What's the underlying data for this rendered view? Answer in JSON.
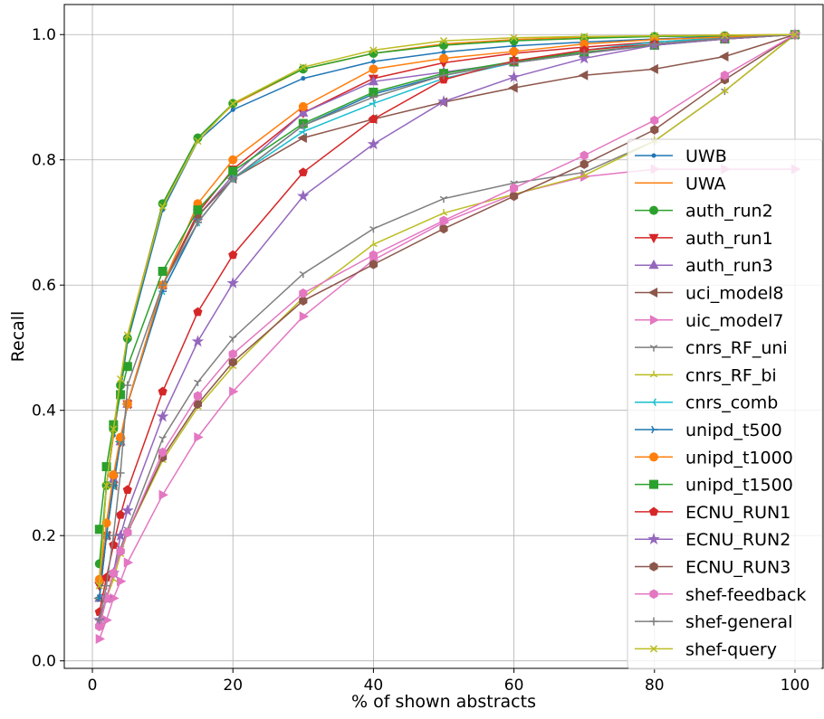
{
  "chart_data": {
    "type": "line",
    "title": "",
    "xlabel": "% of shown abstracts",
    "ylabel": "Recall",
    "xlim": [
      -4,
      104
    ],
    "ylim": [
      -0.012,
      1.048
    ],
    "xticks": [
      0,
      20,
      40,
      60,
      80,
      100
    ],
    "yticks": [
      0.0,
      0.2,
      0.4,
      0.6,
      0.8,
      1.0
    ],
    "xtick_labels": [
      "0",
      "20",
      "40",
      "60",
      "80",
      "100"
    ],
    "ytick_labels": [
      "0.0",
      "0.2",
      "0.4",
      "0.6",
      "0.8",
      "1.0"
    ],
    "grid": true,
    "legend_position": "right",
    "x": [
      1,
      2,
      3,
      4,
      5,
      10,
      15,
      20,
      30,
      40,
      50,
      60,
      70,
      80,
      90,
      100
    ],
    "series": [
      {
        "name": "UWB",
        "color": "#1f77b4",
        "marker": "point",
        "values": [
          0.13,
          0.28,
          0.36,
          0.43,
          0.51,
          0.72,
          0.83,
          0.88,
          0.93,
          0.957,
          0.972,
          0.982,
          0.988,
          0.993,
          0.997,
          1.0
        ]
      },
      {
        "name": "UWA",
        "color": "#ff7f0e",
        "marker": "none",
        "values": [
          0.13,
          0.28,
          0.36,
          0.44,
          0.52,
          0.73,
          0.835,
          0.888,
          0.945,
          0.97,
          0.985,
          0.992,
          0.996,
          0.998,
          0.999,
          1.0
        ]
      },
      {
        "name": "auth_run2",
        "color": "#2ca02c",
        "marker": "circle",
        "values": [
          0.155,
          0.28,
          0.37,
          0.44,
          0.515,
          0.73,
          0.835,
          0.89,
          0.945,
          0.97,
          0.983,
          0.99,
          0.994,
          0.997,
          0.998,
          1.0
        ]
      },
      {
        "name": "auth_run1",
        "color": "#d62728",
        "marker": "triangle-down",
        "values": [
          0.12,
          0.2,
          0.29,
          0.35,
          0.41,
          0.6,
          0.715,
          0.785,
          0.875,
          0.93,
          0.955,
          0.97,
          0.98,
          0.988,
          0.995,
          1.0
        ]
      },
      {
        "name": "auth_run3",
        "color": "#9467bd",
        "marker": "triangle-up",
        "values": [
          0.1,
          0.2,
          0.29,
          0.35,
          0.41,
          0.6,
          0.71,
          0.775,
          0.875,
          0.925,
          0.94,
          0.955,
          0.97,
          0.983,
          0.993,
          1.0
        ]
      },
      {
        "name": "uci_model8",
        "color": "#8c564b",
        "marker": "triangle-left",
        "values": [
          0.1,
          0.2,
          0.28,
          0.35,
          0.41,
          0.6,
          0.71,
          0.77,
          0.835,
          0.865,
          0.892,
          0.915,
          0.935,
          0.945,
          0.965,
          1.0
        ]
      },
      {
        "name": "uic_model7",
        "color": "#e377c2",
        "marker": "triangle-right",
        "values": [
          0.035,
          0.065,
          0.1,
          0.127,
          0.157,
          0.265,
          0.357,
          0.43,
          0.55,
          0.64,
          0.7,
          0.745,
          0.773,
          0.785,
          0.785,
          0.785
        ]
      },
      {
        "name": "cnrs_RF_uni",
        "color": "#7f7f7f",
        "marker": "tri-down",
        "values": [
          0.065,
          0.1,
          0.14,
          0.18,
          0.21,
          0.355,
          0.445,
          0.515,
          0.618,
          0.69,
          0.738,
          0.763,
          0.78,
          0.83,
          0.91,
          1.0
        ]
      },
      {
        "name": "cnrs_RF_bi",
        "color": "#bcbd22",
        "marker": "tri-up",
        "values": [
          0.055,
          0.1,
          0.13,
          0.17,
          0.205,
          0.32,
          0.405,
          0.47,
          0.58,
          0.665,
          0.715,
          0.745,
          0.775,
          0.83,
          0.91,
          1.0
        ]
      },
      {
        "name": "cnrs_comb",
        "color": "#17becf",
        "marker": "tri-left",
        "values": [
          0.1,
          0.2,
          0.28,
          0.35,
          0.41,
          0.59,
          0.7,
          0.77,
          0.845,
          0.89,
          0.93,
          0.955,
          0.975,
          0.988,
          0.995,
          1.0
        ]
      },
      {
        "name": "unipd_t500",
        "color": "#1f77b4",
        "marker": "tri-right",
        "values": [
          0.1,
          0.2,
          0.28,
          0.35,
          0.41,
          0.59,
          0.7,
          0.77,
          0.855,
          0.905,
          0.935,
          0.955,
          0.97,
          0.985,
          0.994,
          1.0
        ]
      },
      {
        "name": "unipd_t1000",
        "color": "#ff7f0e",
        "marker": "circle",
        "values": [
          0.13,
          0.22,
          0.297,
          0.357,
          0.41,
          0.6,
          0.73,
          0.8,
          0.885,
          0.945,
          0.962,
          0.973,
          0.985,
          0.992,
          0.996,
          1.0
        ]
      },
      {
        "name": "unipd_t1500",
        "color": "#2ca02c",
        "marker": "square",
        "values": [
          0.21,
          0.31,
          0.377,
          0.425,
          0.47,
          0.622,
          0.72,
          0.782,
          0.858,
          0.908,
          0.938,
          0.957,
          0.972,
          0.983,
          0.993,
          1.0
        ]
      },
      {
        "name": "ECNU_RUN1",
        "color": "#d62728",
        "marker": "pentagon",
        "values": [
          0.078,
          0.133,
          0.185,
          0.233,
          0.273,
          0.43,
          0.557,
          0.648,
          0.78,
          0.865,
          0.928,
          0.958,
          0.975,
          0.985,
          0.993,
          1.0
        ]
      },
      {
        "name": "ECNU_RUN2",
        "color": "#9467bd",
        "marker": "star",
        "values": [
          0.065,
          0.1,
          0.14,
          0.2,
          0.24,
          0.39,
          0.51,
          0.603,
          0.742,
          0.825,
          0.893,
          0.932,
          0.962,
          0.983,
          0.993,
          1.0
        ]
      },
      {
        "name": "ECNU_RUN3",
        "color": "#8c564b",
        "marker": "hexagon",
        "values": [
          0.055,
          0.1,
          0.14,
          0.175,
          0.205,
          0.325,
          0.41,
          0.477,
          0.575,
          0.633,
          0.69,
          0.742,
          0.793,
          0.848,
          0.928,
          1.0
        ]
      },
      {
        "name": "shef-feedback",
        "color": "#e377c2",
        "marker": "hexagon",
        "values": [
          0.055,
          0.1,
          0.14,
          0.175,
          0.205,
          0.333,
          0.423,
          0.49,
          0.587,
          0.648,
          0.703,
          0.755,
          0.807,
          0.863,
          0.935,
          1.0
        ]
      },
      {
        "name": "shef-general",
        "color": "#7f7f7f",
        "marker": "plus",
        "values": [
          0.065,
          0.12,
          0.2,
          0.3,
          0.44,
          0.6,
          0.7,
          0.77,
          0.855,
          0.9,
          0.935,
          0.955,
          0.97,
          0.985,
          0.994,
          1.0
        ]
      },
      {
        "name": "shef-query",
        "color": "#bcbd22",
        "marker": "x",
        "values": [
          0.12,
          0.28,
          0.37,
          0.45,
          0.52,
          0.725,
          0.83,
          0.89,
          0.948,
          0.975,
          0.99,
          0.995,
          0.997,
          0.998,
          0.999,
          1.0
        ]
      }
    ]
  }
}
